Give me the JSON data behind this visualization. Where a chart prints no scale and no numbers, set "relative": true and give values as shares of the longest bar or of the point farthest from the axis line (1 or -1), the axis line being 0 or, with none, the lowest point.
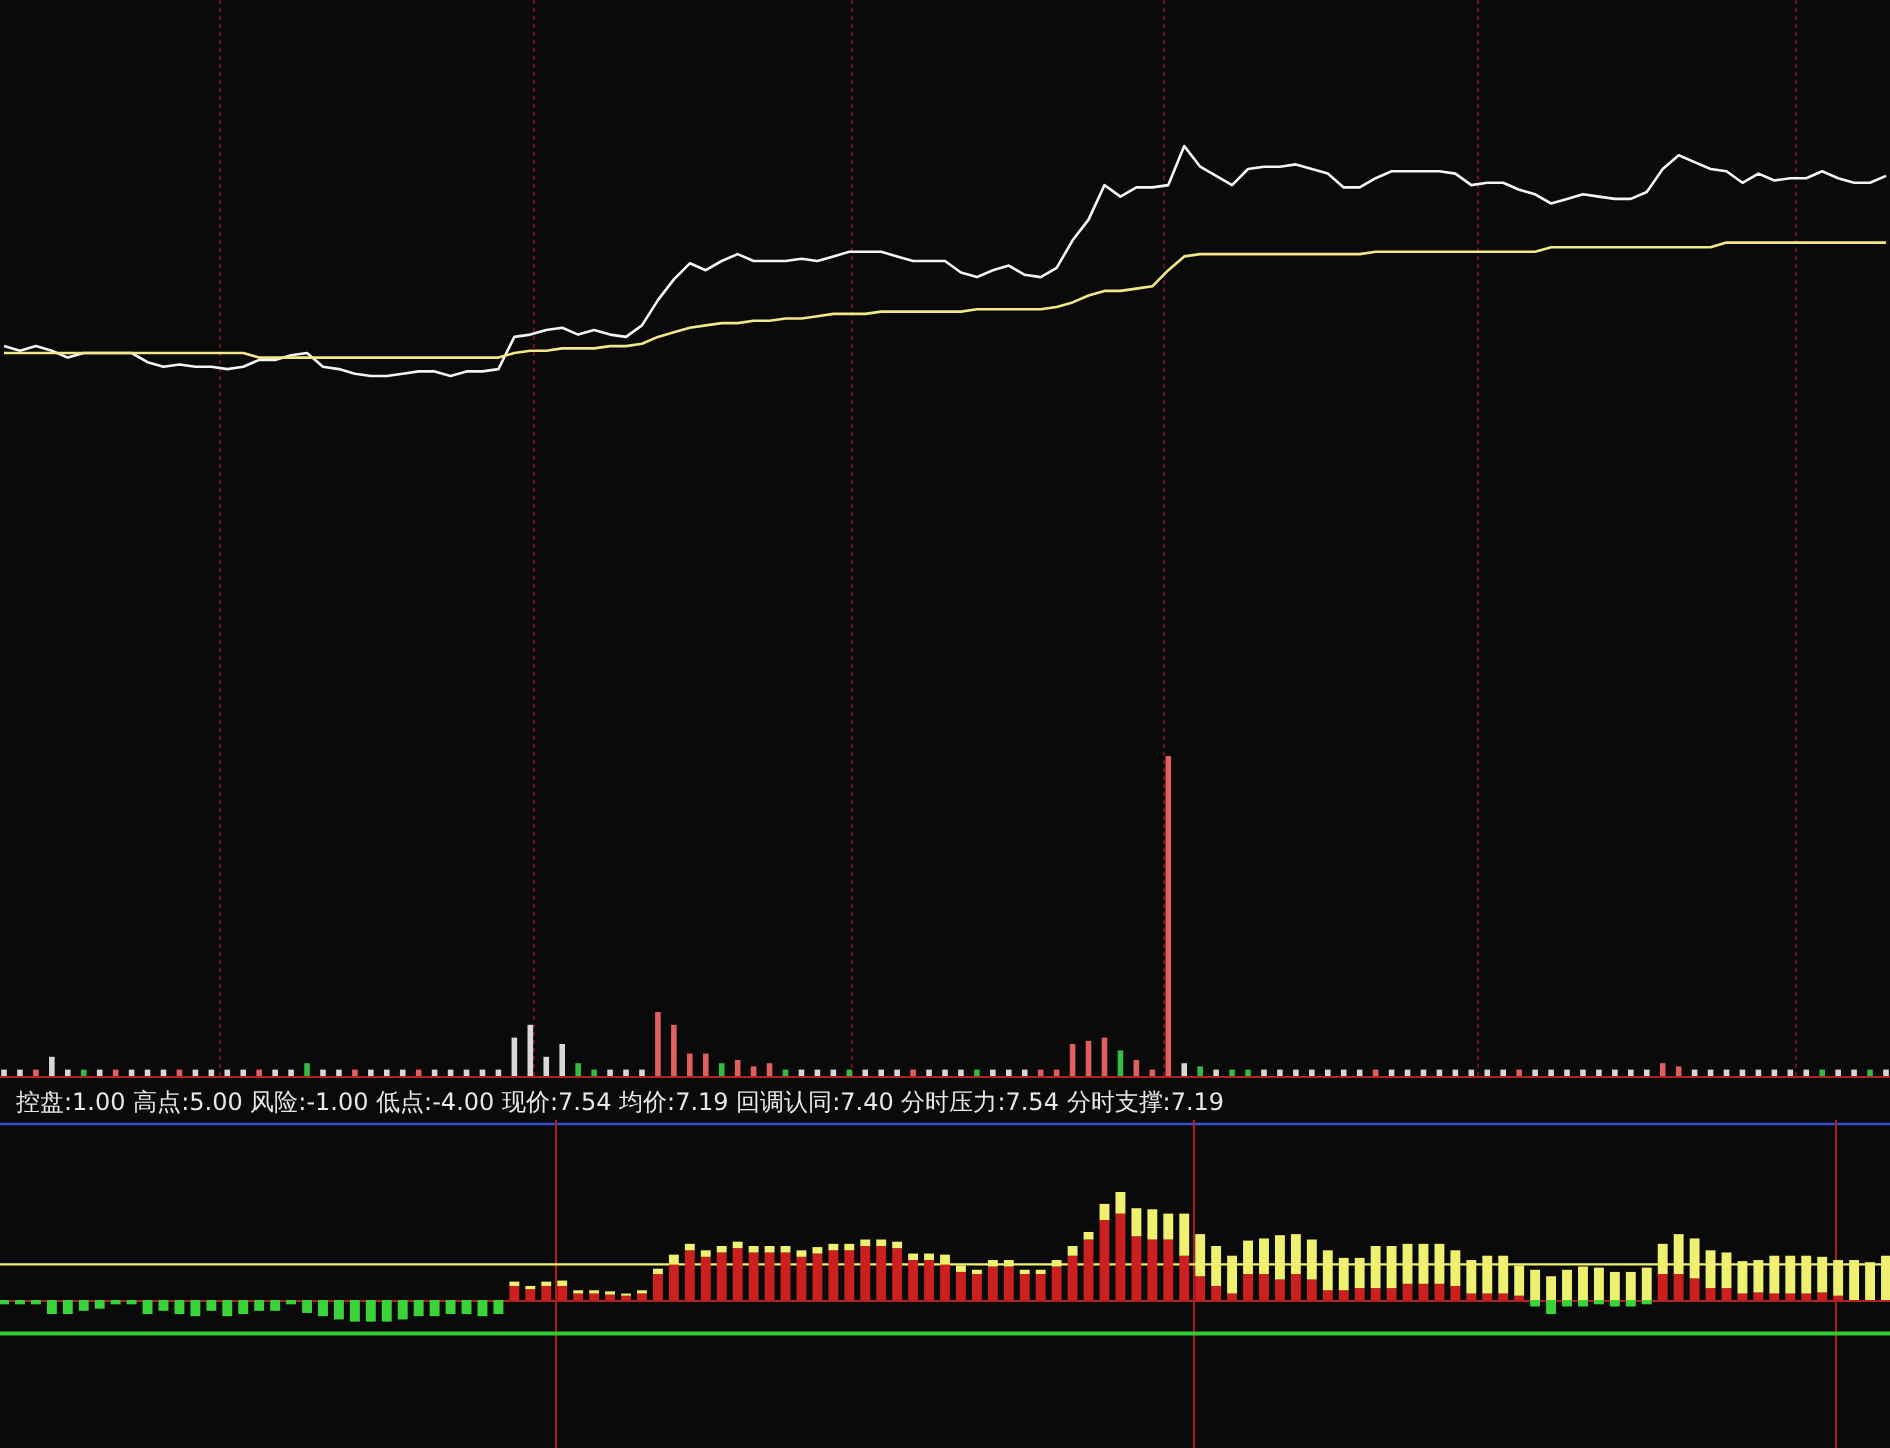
{
  "chart_data": [
    {
      "type": "line",
      "relative": true,
      "grid": "x",
      "categories": [
        null,
        null,
        null,
        null,
        null,
        null,
        null,
        null,
        null,
        null,
        null,
        null,
        null,
        null,
        null,
        null,
        null,
        null,
        null,
        null,
        null,
        null,
        null,
        null,
        null,
        null,
        null,
        null,
        null,
        null,
        null,
        null,
        null,
        null,
        null,
        null,
        null,
        null,
        null,
        null,
        null,
        null,
        null,
        null,
        null,
        null,
        null,
        null,
        null,
        null,
        null,
        null,
        null,
        null,
        null,
        null,
        null,
        null,
        null,
        null,
        null,
        null,
        null,
        null,
        null,
        null,
        null,
        null,
        null,
        null,
        null,
        null,
        null,
        null,
        null,
        null,
        null,
        null,
        null,
        null,
        null,
        null,
        null,
        null,
        null,
        null,
        null,
        null,
        null,
        null,
        null,
        null,
        null,
        null,
        null,
        null,
        null,
        null,
        null,
        null,
        null,
        null,
        null,
        null,
        null,
        null,
        null,
        null,
        null,
        null,
        null,
        null,
        null,
        null,
        null,
        null,
        null,
        null,
        null
      ],
      "series": [
        {
          "color": "#f4f4f4",
          "values": [
            0.13,
            0.11,
            0.13,
            0.11,
            0.08,
            0.1,
            0.1,
            0.1,
            0.1,
            0.06,
            0.04,
            0.05,
            0.04,
            0.04,
            0.03,
            0.04,
            0.07,
            0.07,
            0.09,
            0.1,
            0.04,
            0.03,
            0.01,
            0,
            0,
            0.01,
            0.02,
            0.02,
            0,
            0.02,
            0.02,
            0.03,
            0.17,
            0.18,
            0.2,
            0.21,
            0.18,
            0.2,
            0.18,
            0.17,
            0.22,
            0.33,
            0.42,
            0.49,
            0.46,
            0.5,
            0.53,
            0.5,
            0.5,
            0.5,
            0.51,
            0.5,
            0.52,
            0.54,
            0.54,
            0.54,
            0.52,
            0.5,
            0.5,
            0.5,
            0.45,
            0.43,
            0.46,
            0.48,
            0.44,
            0.43,
            0.47,
            0.59,
            0.68,
            0.83,
            0.78,
            0.82,
            0.82,
            0.83,
            1,
            0.91,
            0.87,
            0.83,
            0.9,
            0.91,
            0.91,
            0.92,
            0.9,
            0.88,
            0.82,
            0.82,
            0.86,
            0.89,
            0.89,
            0.89,
            0.89,
            0.88,
            0.83,
            0.84,
            0.84,
            0.81,
            0.79,
            0.75,
            0.77,
            0.79,
            0.78,
            0.77,
            0.77,
            0.8,
            0.9,
            0.96,
            0.93,
            0.9,
            0.89,
            0.84,
            0.88,
            0.85,
            0.86,
            0.86,
            0.89,
            0.86,
            0.84,
            0.84,
            0.87
          ]
        },
        {
          "color": "#f2e88a",
          "values": [
            0.1,
            0.1,
            0.1,
            0.1,
            0.1,
            0.1,
            0.1,
            0.1,
            0.1,
            0.1,
            0.1,
            0.1,
            0.1,
            0.1,
            0.1,
            0.1,
            0.08,
            0.08,
            0.08,
            0.08,
            0.08,
            0.08,
            0.08,
            0.08,
            0.08,
            0.08,
            0.08,
            0.08,
            0.08,
            0.08,
            0.08,
            0.08,
            0.1,
            0.11,
            0.11,
            0.12,
            0.12,
            0.12,
            0.13,
            0.13,
            0.14,
            0.17,
            0.19,
            0.21,
            0.22,
            0.23,
            0.23,
            0.24,
            0.24,
            0.25,
            0.25,
            0.26,
            0.27,
            0.27,
            0.27,
            0.28,
            0.28,
            0.28,
            0.28,
            0.28,
            0.28,
            0.29,
            0.29,
            0.29,
            0.29,
            0.29,
            0.3,
            0.32,
            0.35,
            0.37,
            0.37,
            0.38,
            0.39,
            0.46,
            0.52,
            0.53,
            0.53,
            0.53,
            0.53,
            0.53,
            0.53,
            0.53,
            0.53,
            0.53,
            0.53,
            0.53,
            0.54,
            0.54,
            0.54,
            0.54,
            0.54,
            0.54,
            0.54,
            0.54,
            0.54,
            0.54,
            0.54,
            0.56,
            0.56,
            0.56,
            0.56,
            0.56,
            0.56,
            0.56,
            0.56,
            0.56,
            0.56,
            0.56,
            0.58,
            0.58,
            0.58,
            0.58,
            0.58,
            0.58,
            0.58,
            0.58,
            0.58,
            0.58,
            0.58
          ]
        }
      ]
    },
    {
      "type": "bar",
      "relative": true,
      "grid": "x",
      "categories": [
        null,
        null,
        null,
        null,
        null,
        null,
        null,
        null,
        null,
        null,
        null,
        null,
        null,
        null,
        null,
        null,
        null,
        null,
        null,
        null,
        null,
        null,
        null,
        null,
        null,
        null,
        null,
        null,
        null,
        null,
        null,
        null,
        null,
        null,
        null,
        null,
        null,
        null,
        null,
        null,
        null,
        null,
        null,
        null,
        null,
        null,
        null,
        null,
        null,
        null,
        null,
        null,
        null,
        null,
        null,
        null,
        null,
        null,
        null,
        null,
        null,
        null,
        null,
        null,
        null,
        null,
        null,
        null,
        null,
        null,
        null,
        null,
        null,
        null,
        null,
        null,
        null,
        null,
        null,
        null,
        null,
        null,
        null,
        null,
        null,
        null,
        null,
        null,
        null,
        null,
        null,
        null,
        null,
        null,
        null,
        null,
        null,
        null,
        null,
        null,
        null,
        null,
        null,
        null,
        null,
        null,
        null,
        null,
        null,
        null,
        null,
        null,
        null,
        null,
        null,
        null,
        null,
        null,
        null
      ],
      "values": [
        0.02,
        0.02,
        0.02,
        0.06,
        0.02,
        0.02,
        0.02,
        0.02,
        0.02,
        0.02,
        0.02,
        0.02,
        0.02,
        0.02,
        0.02,
        0.02,
        0.02,
        0.02,
        0.02,
        0.04,
        0.02,
        0.02,
        0.02,
        0.02,
        0.02,
        0.02,
        0.02,
        0.02,
        0.02,
        0.02,
        0.02,
        0.02,
        0.12,
        0.16,
        0.06,
        0.1,
        0.04,
        0.02,
        0.02,
        0.02,
        0.02,
        0.2,
        0.16,
        0.07,
        0.07,
        0.04,
        0.05,
        0.03,
        0.04,
        0.02,
        0.02,
        0.02,
        0.02,
        0.02,
        0.02,
        0.02,
        0.02,
        0.02,
        0.02,
        0.02,
        0.02,
        0.02,
        0.02,
        0.02,
        0.02,
        0.02,
        0.02,
        0.1,
        0.11,
        0.12,
        0.08,
        0.05,
        0.02,
        1,
        0.04,
        0.03,
        0.02,
        0.02,
        0.02,
        0.02,
        0.02,
        0.02,
        0.02,
        0.02,
        0.02,
        0.02,
        0.02,
        0.02,
        0.02,
        0.02,
        0.02,
        0.02,
        0.02,
        0.02,
        0.02,
        0.02,
        0.02,
        0.02,
        0.02,
        0.02,
        0.02,
        0.02,
        0.02,
        0.02,
        0.04,
        0.03,
        0.02,
        0.02,
        0.02,
        0.02,
        0.02,
        0.02,
        0.02,
        0.02,
        0.02,
        0.02,
        0.02,
        0.02,
        0.02
      ],
      "colors": [
        "#d8d8d8",
        "#d8d8d8",
        "#e06060",
        "#d8d8d8",
        "#d8d8d8",
        "#33bb44",
        "#d8d8d8",
        "#e06060",
        "#d8d8d8",
        "#d8d8d8",
        "#d8d8d8",
        "#e06060",
        "#d8d8d8",
        "#d8d8d8",
        "#d8d8d8",
        "#d8d8d8",
        "#e06060",
        "#d8d8d8",
        "#d8d8d8",
        "#33bb44",
        "#d8d8d8",
        "#d8d8d8",
        "#e06060",
        "#d8d8d8",
        "#d8d8d8",
        "#d8d8d8",
        "#e06060",
        "#d8d8d8",
        "#d8d8d8",
        "#d8d8d8",
        "#d8d8d8",
        "#d8d8d8",
        "#d8d8d8",
        "#d8d8d8",
        "#d8d8d8",
        "#d8d8d8",
        "#33bb44",
        "#33bb44",
        "#d8d8d8",
        "#d8d8d8",
        "#d8d8d8",
        "#e06060",
        "#e06060",
        "#e06060",
        "#e06060",
        "#33bb44",
        "#e06060",
        "#e06060",
        "#e06060",
        "#33bb44",
        "#d8d8d8",
        "#d8d8d8",
        "#d8d8d8",
        "#33bb44",
        "#d8d8d8",
        "#d8d8d8",
        "#d8d8d8",
        "#e06060",
        "#d8d8d8",
        "#d8d8d8",
        "#d8d8d8",
        "#33bb44",
        "#d8d8d8",
        "#d8d8d8",
        "#d8d8d8",
        "#e06060",
        "#e06060",
        "#e06060",
        "#e06060",
        "#e06060",
        "#33bb44",
        "#e06060",
        "#e06060",
        "#e06060",
        "#d8d8d8",
        "#33bb44",
        "#d8d8d8",
        "#33bb44",
        "#33bb44",
        "#d8d8d8",
        "#d8d8d8",
        "#d8d8d8",
        "#d8d8d8",
        "#d8d8d8",
        "#d8d8d8",
        "#d8d8d8",
        "#e06060",
        "#d8d8d8",
        "#d8d8d8",
        "#d8d8d8",
        "#d8d8d8",
        "#d8d8d8",
        "#d8d8d8",
        "#d8d8d8",
        "#d8d8d8",
        "#e06060",
        "#d8d8d8",
        "#d8d8d8",
        "#d8d8d8",
        "#d8d8d8",
        "#d8d8d8",
        "#d8d8d8",
        "#d8d8d8",
        "#d8d8d8",
        "#e06060",
        "#e06060",
        "#d8d8d8",
        "#d8d8d8",
        "#d8d8d8",
        "#d8d8d8",
        "#d8d8d8",
        "#d8d8d8",
        "#d8d8d8",
        "#d8d8d8",
        "#33bb44",
        "#d8d8d8",
        "#d8d8d8",
        "#33bb44",
        "#d8d8d8"
      ]
    },
    {
      "type": "bar",
      "relative": true,
      "stacked": true,
      "grid": "x",
      "title": "控盘:1.00  高点:5.00  风险:-1.00  低点:-4.00  现价:7.54  均价:7.19  回调认同:7.40  分时压力:7.54  分时支撑:7.19",
      "categories": [
        null,
        null,
        null,
        null,
        null,
        null,
        null,
        null,
        null,
        null,
        null,
        null,
        null,
        null,
        null,
        null,
        null,
        null,
        null,
        null,
        null,
        null,
        null,
        null,
        null,
        null,
        null,
        null,
        null,
        null,
        null,
        null,
        null,
        null,
        null,
        null,
        null,
        null,
        null,
        null,
        null,
        null,
        null,
        null,
        null,
        null,
        null,
        null,
        null,
        null,
        null,
        null,
        null,
        null,
        null,
        null,
        null,
        null,
        null,
        null,
        null,
        null,
        null,
        null,
        null,
        null,
        null,
        null,
        null,
        null,
        null,
        null,
        null,
        null,
        null,
        null,
        null,
        null,
        null,
        null,
        null,
        null,
        null,
        null,
        null,
        null,
        null,
        null,
        null,
        null,
        null,
        null,
        null,
        null,
        null,
        null,
        null,
        null,
        null,
        null,
        null,
        null,
        null,
        null,
        null,
        null,
        null,
        null,
        null,
        null,
        null,
        null,
        null,
        null,
        null,
        null,
        null,
        null,
        null
      ],
      "series": [
        {
          "color": "#cc1f1f",
          "values": [
            0,
            0,
            0,
            0,
            0,
            0,
            0,
            0,
            0,
            0,
            0,
            0,
            0,
            0,
            0,
            0,
            0,
            0,
            0,
            0,
            0,
            0,
            0,
            0,
            0,
            0,
            0,
            0,
            0,
            0,
            0,
            0,
            0.13,
            0.1,
            0.13,
            0.13,
            0.06,
            0.06,
            0.05,
            0.04,
            0.06,
            0.24,
            0.33,
            0.46,
            0.4,
            0.44,
            0.48,
            0.44,
            0.44,
            0.44,
            0.4,
            0.43,
            0.46,
            0.46,
            0.5,
            0.5,
            0.48,
            0.37,
            0.37,
            0.33,
            0.26,
            0.24,
            0.31,
            0.31,
            0.24,
            0.24,
            0.31,
            0.41,
            0.56,
            0.74,
            0.8,
            0.59,
            0.56,
            0.56,
            0.41,
            0.22,
            0.13,
            0.06,
            0.24,
            0.24,
            0.19,
            0.24,
            0.19,
            0.09,
            0.09,
            0.11,
            0.11,
            0.11,
            0.15,
            0.15,
            0.15,
            0.13,
            0.06,
            0.06,
            0.06,
            0.04,
            0,
            0,
            0,
            0,
            0,
            0,
            0,
            0,
            0.24,
            0.24,
            0.2,
            0.11,
            0.11,
            0.06,
            0.07,
            0.06,
            0.06,
            0.06,
            0.07,
            0.04,
            0,
            0,
            0
          ]
        },
        {
          "color": "#f0f070",
          "values": [
            0,
            0,
            0,
            0,
            0,
            0,
            0,
            0,
            0,
            0,
            0,
            0,
            0,
            0,
            0,
            0,
            0,
            0,
            0,
            0,
            0,
            0,
            0,
            0,
            0,
            0,
            0,
            0,
            0,
            0,
            0,
            0,
            0.04,
            0.03,
            0.04,
            0.05,
            0.03,
            0.03,
            0.03,
            0.02,
            0.03,
            0.05,
            0.09,
            0.06,
            0.06,
            0.06,
            0.06,
            0.06,
            0.06,
            0.06,
            0.06,
            0.06,
            0.06,
            0.06,
            0.06,
            0.06,
            0.06,
            0.06,
            0.06,
            0.09,
            0.06,
            0.04,
            0.06,
            0.06,
            0.04,
            0.04,
            0.06,
            0.09,
            0.07,
            0.15,
            0.2,
            0.26,
            0.28,
            0.24,
            0.39,
            0.39,
            0.37,
            0.35,
            0.31,
            0.33,
            0.41,
            0.37,
            0.37,
            0.37,
            0.3,
            0.28,
            0.39,
            0.39,
            0.37,
            0.37,
            0.37,
            0.33,
            0.31,
            0.35,
            0.35,
            0.28,
            0.28,
            0.22,
            0.28,
            0.31,
            0.3,
            0.26,
            0.26,
            0.3,
            0.28,
            0.37,
            0.37,
            0.35,
            0.33,
            0.3,
            0.3,
            0.35,
            0.35,
            0.35,
            0.33,
            0.33,
            0.37,
            0.35,
            0.41
          ]
        },
        {
          "color": "#3ad43a",
          "values": [
            -0.04,
            -0.04,
            -0.04,
            -0.13,
            -0.13,
            -0.1,
            -0.08,
            -0.04,
            -0.04,
            -0.13,
            -0.1,
            -0.13,
            -0.15,
            -0.1,
            -0.15,
            -0.13,
            -0.1,
            -0.1,
            -0.04,
            -0.12,
            -0.15,
            -0.18,
            -0.2,
            -0.2,
            -0.2,
            -0.18,
            -0.15,
            -0.15,
            -0.13,
            -0.13,
            -0.15,
            -0.13,
            0,
            0,
            0,
            0,
            0,
            0,
            0,
            0,
            0,
            0,
            0,
            0,
            0,
            0,
            0,
            0,
            0,
            0,
            0,
            0,
            0,
            0,
            0,
            0,
            0,
            0,
            0,
            0,
            0,
            0,
            0,
            0,
            0,
            0,
            0,
            0,
            0,
            0,
            0,
            0,
            0,
            0,
            0,
            0,
            0,
            0,
            0,
            0,
            0,
            0,
            0,
            0,
            0,
            0,
            0,
            0,
            0,
            0,
            0,
            0,
            0,
            0,
            0,
            0,
            -0.06,
            -0.13,
            -0.06,
            -0.06,
            -0.04,
            -0.06,
            -0.06,
            -0.04,
            0,
            0,
            0,
            0,
            0,
            0,
            0,
            0,
            0,
            0,
            0,
            0,
            0,
            0,
            0
          ]
        }
      ],
      "ref_lines": [
        {
          "axis": "y",
          "value": 0.33,
          "color": "#f0f070"
        },
        {
          "axis": "y",
          "value": -0.31,
          "color": "#33cc33"
        }
      ]
    }
  ]
}
